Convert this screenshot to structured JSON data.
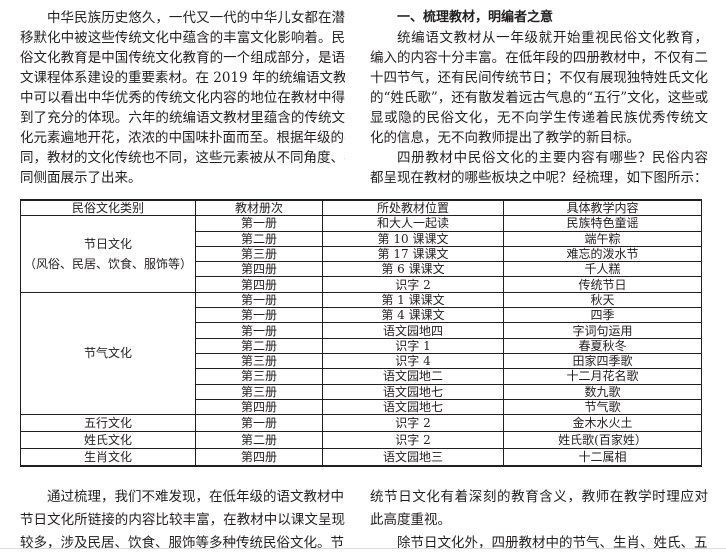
{
  "left_intro": [
    "中华民族历史悠久，一代又一代的中华儿女都在潜",
    "移默化中被这些传统文化中蕴含的丰富文化影响着。民",
    "俗文化教育是中国传统文化教育的一个组成部分，是语",
    "文课程体系建设的重要素材。在 2019 年的统编语文教材",
    "中可以看出中华优秀的传统文化内容的地位在教材中得",
    "到了充分的体现。六年的统编语文教材里蕴含的传统文",
    "化元素遍地开花，浓浓的中国味扑面而至。根据年级的不",
    "同，教材的文化传统也不同，这些元素被从不同角度、不",
    "同侧面展示了出来。"
  ],
  "section_heading": "一、梳理教材，明编者之意",
  "right_intro": [
    "统编语文教材从一年级就开始重视民俗文化教育，",
    "编入的内容十分丰富。在低年段的四册教材中，不仅有二",
    "十四节气，还有民间传统节日；不仅有展现独特姓氏文化",
    "的“姓氏歌”，还有散发着远古气息的“五行”文化，这些或",
    "显或隐的民俗文化，无不向学生传递着民族优秀传统文",
    "化的信息，无不向教师提出了教学的新目标。",
    "四册教材中民俗文化的主要内容有哪些？民俗内容",
    "都呈现在教材的哪些板块之中呢？经梳理，如下图所示："
  ],
  "table": {
    "headers": [
      "民俗文化类别",
      "教材册次",
      "所处教材位置",
      "具体教学内容"
    ],
    "groups": [
      {
        "category": [
          "节日文化",
          "（风俗、民居、饮食、服饰等）"
        ],
        "rows": [
          [
            "第一册",
            "和大人一起读",
            "民族特色童谣"
          ],
          [
            "第二册",
            "第 10 课课文",
            "端午粽"
          ],
          [
            "第三册",
            "第 17 课课文",
            "难忘的泼水节"
          ],
          [
            "第四册",
            "第 6 课课文",
            "千人糕"
          ],
          [
            "第四册",
            "识字 2",
            "传统节日"
          ]
        ]
      },
      {
        "category": [
          "节气文化"
        ],
        "rows": [
          [
            "第一册",
            "第 1 课课文",
            "秋天"
          ],
          [
            "第一册",
            "第 4 课课文",
            "四季"
          ],
          [
            "第一册",
            "语文园地四",
            "字词句运用"
          ],
          [
            "第二册",
            "识字 1",
            "春夏秋冬"
          ],
          [
            "第三册",
            "识字 4",
            "田家四季歌"
          ],
          [
            "第三册",
            "语文园地二",
            "十二月花名歌"
          ],
          [
            "第三册",
            "语文园地七",
            "数九歌"
          ],
          [
            "第四册",
            "语文园地七",
            "节气歌"
          ]
        ]
      },
      {
        "category": [
          "五行文化"
        ],
        "rows": [
          [
            "第一册",
            "识字 2",
            "金木水火土"
          ]
        ]
      },
      {
        "category": [
          "姓氏文化"
        ],
        "rows": [
          [
            "第二册",
            "识字 2",
            "姓氏歌(百家姓）"
          ]
        ]
      },
      {
        "category": [
          "生肖文化"
        ],
        "rows": [
          [
            "第四册",
            "语文园地三",
            "十二属相"
          ]
        ]
      }
    ]
  },
  "left_bottom": [
    "通过梳理，我们不难发现，在低年级的语文教材中，",
    "节日文化所链接的内容比较丰富，在教材中以课文呈现",
    "较多，涉及民居、饮食、服饰等多种传统民俗文化。节日内"
  ],
  "right_bottom": [
    "统节日文化有着深刻的教育含义，教师在教学时理应对",
    "此高度重视。",
    "除节日文化外，四册教材中的节气、生肖、姓氏、五行"
  ]
}
